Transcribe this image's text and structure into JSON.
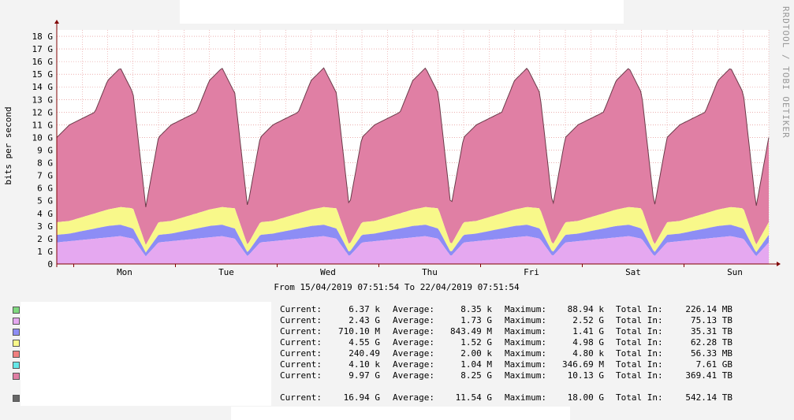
{
  "watermark": "RRDTOOL / TOBI OETIKER",
  "chart_data": {
    "type": "area",
    "stacked": true,
    "ylabel": "bits per second",
    "yticks": [
      "0",
      "1 G",
      "2 G",
      "3 G",
      "4 G",
      "5 G",
      "6 G",
      "7 G",
      "8 G",
      "9 G",
      "10 G",
      "11 G",
      "12 G",
      "13 G",
      "14 G",
      "15 G",
      "16 G",
      "17 G",
      "18 G"
    ],
    "ylim": [
      0,
      18.5
    ],
    "xticks": [
      "Mon",
      "Tue",
      "Wed",
      "Thu",
      "Fri",
      "Sat",
      "Sun"
    ],
    "subtitle": "From 15/04/2019 07:51:54 To 22/04/2019 07:51:54",
    "grid": true,
    "colors": {
      "green": "#7fd87f",
      "violet": "#e5a8f0",
      "blue": "#8d8df5",
      "yellow": "#f8f88a",
      "red": "#f08080",
      "cyan": "#66e8e8",
      "pink": "#e07fa4",
      "total_line": "#6b3b4a",
      "total_swatch": "#666666",
      "grid": "#e08080",
      "axis": "#800000"
    },
    "series_samples_day_hours": [
      0,
      3,
      6,
      9,
      12,
      15,
      18,
      21,
      24
    ],
    "series": [
      {
        "key": "violet",
        "values_G": [
          1.7,
          1.8,
          1.9,
          2.0,
          2.1,
          2.2,
          2.0,
          0.6,
          1.7
        ]
      },
      {
        "key": "blue",
        "values_G": [
          0.6,
          0.6,
          0.7,
          0.8,
          0.9,
          0.9,
          0.8,
          0.3,
          0.6
        ]
      },
      {
        "key": "yellow",
        "values_G": [
          1.0,
          1.0,
          1.1,
          1.2,
          1.3,
          1.4,
          1.6,
          0.6,
          1.0
        ]
      },
      {
        "key": "total",
        "values_G": [
          10.0,
          11.0,
          11.5,
          12.0,
          14.5,
          15.5,
          13.5,
          4.5,
          10.0
        ]
      }
    ]
  },
  "legend": {
    "labels": {
      "current": "Current:",
      "average": "Average:",
      "maximum": "Maximum:",
      "total_in": "Total In:"
    },
    "rows": [
      {
        "color": "#7fd87f",
        "current": "6.37 k",
        "average": "8.35 k",
        "maximum": "88.94 k",
        "total": "226.14 MB"
      },
      {
        "color": "#e5a8f0",
        "current": "2.43 G",
        "average": "1.73 G",
        "maximum": "2.52 G",
        "total": "75.13 TB"
      },
      {
        "color": "#8d8df5",
        "current": "710.10 M",
        "average": "843.49 M",
        "maximum": "1.41 G",
        "total": "35.31 TB"
      },
      {
        "color": "#f8f88a",
        "current": "4.55 G",
        "average": "1.52 G",
        "maximum": "4.98 G",
        "total": "62.28 TB"
      },
      {
        "color": "#f08080",
        "current": "240.49",
        "average": "2.00 k",
        "maximum": "4.80 k",
        "total": "56.33 MB"
      },
      {
        "color": "#66e8e8",
        "current": "4.10 k",
        "average": "1.04 M",
        "maximum": "346.69 M",
        "total": "7.61 GB"
      },
      {
        "color": "#e07fa4",
        "current": "9.97 G",
        "average": "8.25 G",
        "maximum": "10.13 G",
        "total": "369.41 TB"
      },
      {
        "color": "#666666",
        "current": "16.94 G",
        "average": "11.54 G",
        "maximum": "18.00 G",
        "total": "542.14 TB"
      }
    ]
  }
}
